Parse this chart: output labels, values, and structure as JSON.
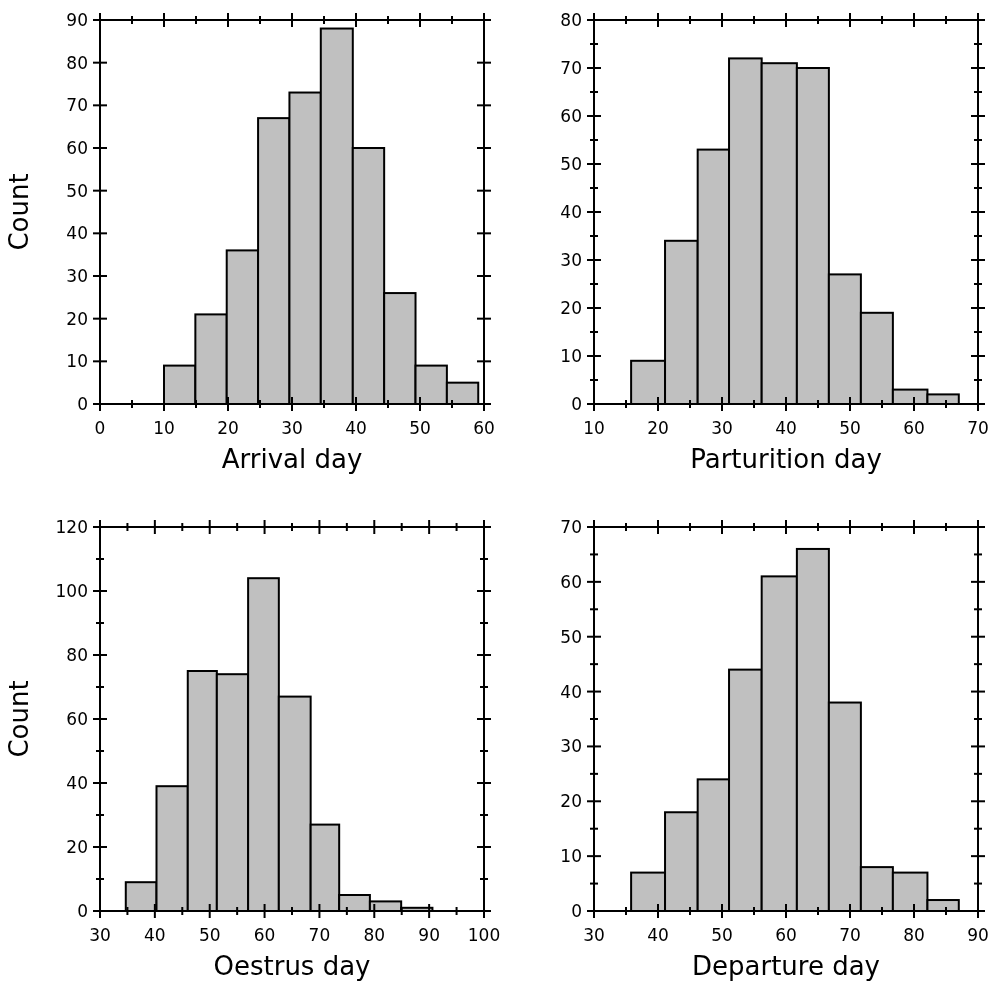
{
  "chart_data": [
    {
      "type": "histogram",
      "xlabel": "Arrival day",
      "ylabel": "Count",
      "color": "#c0c0c0",
      "bins": [
        10,
        14.9,
        19.8,
        24.7,
        29.6,
        34.5,
        39.5,
        44.4,
        49.3,
        54.2,
        59.1
      ],
      "values": [
        9,
        21,
        36,
        67,
        73,
        88,
        60,
        26,
        9,
        5
      ],
      "xlim": [
        0,
        60
      ],
      "ylim": [
        0,
        90
      ],
      "xticks": [
        0,
        {
          "value": 5,
          "label": null
        },
        10,
        {
          "value": 15,
          "label": null
        },
        20,
        {
          "value": 25,
          "label": null
        },
        30,
        {
          "value": 35,
          "label": null
        },
        40,
        {
          "value": 45,
          "label": null
        },
        50,
        {
          "value": 55,
          "label": null
        },
        60
      ],
      "yticks": [
        0,
        10,
        20,
        30,
        40,
        50,
        60,
        70,
        80,
        90
      ]
    },
    {
      "type": "histogram",
      "xlabel": "Parturition day",
      "color": "#c0c0c0",
      "bins": [
        15.8,
        21.1,
        26.2,
        31.1,
        36.2,
        41.7,
        46.7,
        51.7,
        56.7,
        62.1,
        67
      ],
      "values": [
        9,
        34,
        53,
        72,
        71,
        70,
        27,
        19,
        3,
        2
      ],
      "xlim": [
        10,
        70
      ],
      "ylim": [
        0,
        80
      ],
      "xticks": [
        10,
        {
          "value": 15,
          "label": null
        },
        20,
        {
          "value": 25,
          "label": null
        },
        30,
        {
          "value": 35,
          "label": null
        },
        40,
        {
          "value": 45,
          "label": null
        },
        50,
        {
          "value": 55,
          "label": null
        },
        60,
        {
          "value": 65,
          "label": null
        },
        70
      ],
      "yticks": [
        0,
        {
          "value": 5,
          "label": null
        },
        10,
        {
          "value": 15,
          "label": null
        },
        20,
        {
          "value": 25,
          "label": null
        },
        30,
        {
          "value": 35,
          "label": null
        },
        40,
        {
          "value": 45,
          "label": null
        },
        50,
        {
          "value": 55,
          "label": null
        },
        60,
        {
          "value": 65,
          "label": null
        },
        70,
        {
          "value": 75,
          "label": null
        },
        80
      ]
    },
    {
      "type": "histogram",
      "xlabel": "Oestrus day",
      "ylabel": "Count",
      "color": "#c0c0c0",
      "bins": [
        34.7,
        40.3,
        46,
        51.3,
        57,
        62.6,
        68.4,
        73.6,
        79.2,
        84.9,
        90.6
      ],
      "values": [
        9,
        39,
        75,
        74,
        104,
        67,
        27,
        5,
        3,
        1
      ],
      "xlim": [
        30,
        100
      ],
      "ylim": [
        0,
        120
      ],
      "xticks": [
        30,
        {
          "value": 35,
          "label": null
        },
        40,
        {
          "value": 45,
          "label": null
        },
        50,
        {
          "value": 55,
          "label": null
        },
        60,
        {
          "value": 65,
          "label": null
        },
        70,
        {
          "value": 75,
          "label": null
        },
        80,
        {
          "value": 85,
          "label": null
        },
        90,
        {
          "value": 95,
          "label": null
        },
        100
      ],
      "yticks": [
        0,
        {
          "value": 10,
          "label": null
        },
        20,
        {
          "value": 30,
          "label": null
        },
        40,
        {
          "value": 50,
          "label": null
        },
        60,
        {
          "value": 70,
          "label": null
        },
        80,
        {
          "value": 90,
          "label": null
        },
        100,
        {
          "value": 110,
          "label": null
        },
        120
      ]
    },
    {
      "type": "histogram",
      "xlabel": "Departure day",
      "color": "#c0c0c0",
      "bins": [
        35.8,
        41.1,
        46.2,
        51.1,
        56.2,
        61.7,
        66.7,
        71.7,
        76.7,
        82.1,
        87
      ],
      "values": [
        7,
        18,
        24,
        44,
        61,
        66,
        38,
        8,
        7,
        2
      ],
      "xlim": [
        30,
        90
      ],
      "ylim": [
        0,
        70
      ],
      "xticks": [
        30,
        {
          "value": 35,
          "label": null
        },
        40,
        {
          "value": 45,
          "label": null
        },
        50,
        {
          "value": 55,
          "label": null
        },
        60,
        {
          "value": 65,
          "label": null
        },
        70,
        {
          "value": 75,
          "label": null
        },
        80,
        {
          "value": 85,
          "label": null
        },
        90
      ],
      "yticks": [
        0,
        {
          "value": 5,
          "label": null
        },
        10,
        {
          "value": 15,
          "label": null
        },
        20,
        {
          "value": 25,
          "label": null
        },
        30,
        {
          "value": 35,
          "label": null
        },
        40,
        {
          "value": 45,
          "label": null
        },
        50,
        {
          "value": 55,
          "label": null
        },
        60,
        {
          "value": 65,
          "label": null
        },
        70
      ]
    }
  ]
}
